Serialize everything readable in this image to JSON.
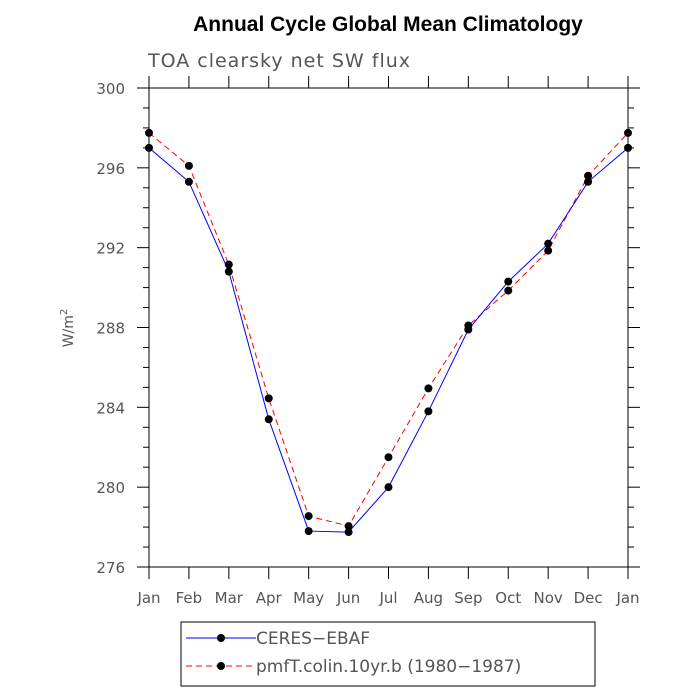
{
  "chart_data": {
    "type": "line",
    "title": "Annual Cycle Global Mean Climatology",
    "subtitle": "TOA clearsky net SW flux",
    "ylabel": "W/m",
    "ylabel_sup": "2",
    "xlabel": "",
    "categories": [
      "Jan",
      "Feb",
      "Mar",
      "Apr",
      "May",
      "Jun",
      "Jul",
      "Aug",
      "Sep",
      "Oct",
      "Nov",
      "Dec",
      "Jan"
    ],
    "ylim": [
      276,
      300
    ],
    "yticks": [
      276,
      280,
      284,
      288,
      292,
      296,
      300
    ],
    "grid": false,
    "legend_position": "bottom",
    "series": [
      {
        "name": "CERES−EBAF",
        "color": "#0000ff",
        "line_style": "solid",
        "values": [
          297.0,
          295.3,
          290.8,
          283.4,
          277.8,
          277.75,
          280.0,
          283.8,
          287.9,
          290.3,
          292.2,
          295.3,
          297.0
        ]
      },
      {
        "name": "pmfT.colin.10yr.b (1980−1987)",
        "color": "#ff0000",
        "line_style": "dashed",
        "values": [
          297.75,
          296.1,
          291.15,
          284.45,
          278.55,
          278.05,
          281.5,
          284.95,
          288.1,
          289.85,
          291.85,
          295.6,
          297.75
        ]
      }
    ]
  }
}
